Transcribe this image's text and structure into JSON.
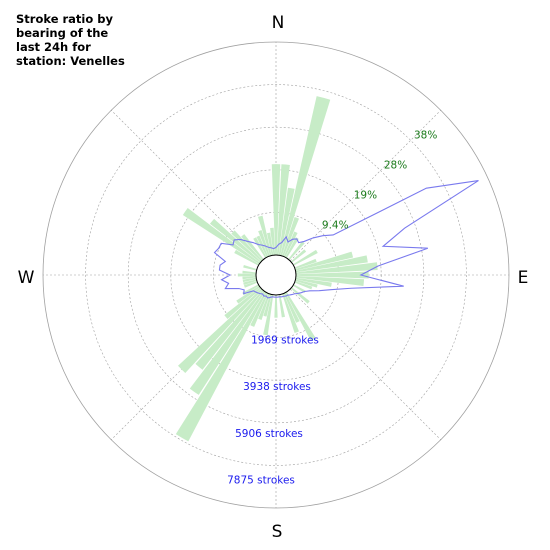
{
  "title": "Stroke ratio by bearing of the last 24h for station: Venelles",
  "colors": {
    "bars": "#c7ecc7",
    "line": "#7a7aee",
    "grid": "#a0a0a0",
    "pct_text": "#1a7a1a",
    "stroke_text": "#1a1aee"
  },
  "chart_data": {
    "type": "polar",
    "title": "Stroke ratio by bearing of the last 24h for station: Venelles",
    "directions": [
      "N",
      "E",
      "S",
      "W"
    ],
    "ratio_ticks": [
      "9.4%",
      "19%",
      "28%",
      "38%"
    ],
    "ratio_max_pct": 46.9,
    "stroke_ticks": [
      "1969 strokes",
      "3938 strokes",
      "5906 strokes",
      "7875 strokes"
    ],
    "stroke_max": 9844,
    "bin_width_deg": 5,
    "ratio_bars": [
      {
        "bearing": 0,
        "pct": 20
      },
      {
        "bearing": 5,
        "pct": 20
      },
      {
        "bearing": 10,
        "pct": 15
      },
      {
        "bearing": 15,
        "pct": 36
      },
      {
        "bearing": 20,
        "pct": 9
      },
      {
        "bearing": 25,
        "pct": 6
      },
      {
        "bearing": 30,
        "pct": 5
      },
      {
        "bearing": 40,
        "pct": 5
      },
      {
        "bearing": 50,
        "pct": 4
      },
      {
        "bearing": 60,
        "pct": 6
      },
      {
        "bearing": 70,
        "pct": 5
      },
      {
        "bearing": 75,
        "pct": 13
      },
      {
        "bearing": 80,
        "pct": 16
      },
      {
        "bearing": 85,
        "pct": 18
      },
      {
        "bearing": 90,
        "pct": 16
      },
      {
        "bearing": 95,
        "pct": 15
      },
      {
        "bearing": 100,
        "pct": 8
      },
      {
        "bearing": 105,
        "pct": 5
      },
      {
        "bearing": 110,
        "pct": 4
      },
      {
        "bearing": 120,
        "pct": 3
      },
      {
        "bearing": 130,
        "pct": 5
      },
      {
        "bearing": 150,
        "pct": 12
      },
      {
        "bearing": 155,
        "pct": 7
      },
      {
        "bearing": 160,
        "pct": 9
      },
      {
        "bearing": 170,
        "pct": 5
      },
      {
        "bearing": 180,
        "pct": 5
      },
      {
        "bearing": 190,
        "pct": 9
      },
      {
        "bearing": 195,
        "pct": 5
      },
      {
        "bearing": 200,
        "pct": 6
      },
      {
        "bearing": 205,
        "pct": 8
      },
      {
        "bearing": 210,
        "pct": 37
      },
      {
        "bearing": 215,
        "pct": 27
      },
      {
        "bearing": 220,
        "pct": 22
      },
      {
        "bearing": 225,
        "pct": 25
      },
      {
        "bearing": 230,
        "pct": 10
      },
      {
        "bearing": 235,
        "pct": 6
      },
      {
        "bearing": 240,
        "pct": 4
      },
      {
        "bearing": 250,
        "pct": 3
      },
      {
        "bearing": 255,
        "pct": 3
      },
      {
        "bearing": 260,
        "pct": 3
      },
      {
        "bearing": 265,
        "pct": 3
      },
      {
        "bearing": 270,
        "pct": 4
      },
      {
        "bearing": 275,
        "pct": 3
      },
      {
        "bearing": 285,
        "pct": 3
      },
      {
        "bearing": 300,
        "pct": 6
      },
      {
        "bearing": 305,
        "pct": 20
      },
      {
        "bearing": 310,
        "pct": 14
      },
      {
        "bearing": 315,
        "pct": 9
      },
      {
        "bearing": 320,
        "pct": 7
      },
      {
        "bearing": 330,
        "pct": 5
      },
      {
        "bearing": 335,
        "pct": 5
      },
      {
        "bearing": 340,
        "pct": 6
      },
      {
        "bearing": 345,
        "pct": 9
      },
      {
        "bearing": 350,
        "pct": 5
      },
      {
        "bearing": 355,
        "pct": 6
      }
    ],
    "stroke_line": [
      {
        "bearing": 0,
        "strokes": 350
      },
      {
        "bearing": 5,
        "strokes": 500
      },
      {
        "bearing": 10,
        "strokes": 600
      },
      {
        "bearing": 15,
        "strokes": 900
      },
      {
        "bearing": 20,
        "strokes": 700
      },
      {
        "bearing": 25,
        "strokes": 900
      },
      {
        "bearing": 30,
        "strokes": 1000
      },
      {
        "bearing": 35,
        "strokes": 900
      },
      {
        "bearing": 40,
        "strokes": 1100
      },
      {
        "bearing": 45,
        "strokes": 1500
      },
      {
        "bearing": 50,
        "strokes": 1900
      },
      {
        "bearing": 55,
        "strokes": 2300
      },
      {
        "bearing": 60,
        "strokes": 7100
      },
      {
        "bearing": 65,
        "strokes": 9400
      },
      {
        "bearing": 70,
        "strokes": 5400
      },
      {
        "bearing": 75,
        "strokes": 4200
      },
      {
        "bearing": 80,
        "strokes": 6200
      },
      {
        "bearing": 85,
        "strokes": 3800
      },
      {
        "bearing": 90,
        "strokes": 3000
      },
      {
        "bearing": 95,
        "strokes": 5000
      },
      {
        "bearing": 100,
        "strokes": 2600
      },
      {
        "bearing": 105,
        "strokes": 1700
      },
      {
        "bearing": 110,
        "strokes": 1200
      },
      {
        "bearing": 115,
        "strokes": 800
      },
      {
        "bearing": 120,
        "strokes": 600
      },
      {
        "bearing": 125,
        "strokes": 500
      },
      {
        "bearing": 130,
        "strokes": 400
      },
      {
        "bearing": 135,
        "strokes": 300
      },
      {
        "bearing": 140,
        "strokes": 250
      },
      {
        "bearing": 145,
        "strokes": 200
      },
      {
        "bearing": 150,
        "strokes": 150
      },
      {
        "bearing": 155,
        "strokes": 150
      },
      {
        "bearing": 160,
        "strokes": 120
      },
      {
        "bearing": 165,
        "strokes": 120
      },
      {
        "bearing": 170,
        "strokes": 100
      },
      {
        "bearing": 175,
        "strokes": 100
      },
      {
        "bearing": 180,
        "strokes": 100
      },
      {
        "bearing": 185,
        "strokes": 100
      },
      {
        "bearing": 190,
        "strokes": 100
      },
      {
        "bearing": 195,
        "strokes": 150
      },
      {
        "bearing": 200,
        "strokes": 200
      },
      {
        "bearing": 205,
        "strokes": 150
      },
      {
        "bearing": 210,
        "strokes": 200
      },
      {
        "bearing": 215,
        "strokes": 150
      },
      {
        "bearing": 220,
        "strokes": 200
      },
      {
        "bearing": 225,
        "strokes": 250
      },
      {
        "bearing": 230,
        "strokes": 300
      },
      {
        "bearing": 235,
        "strokes": 350
      },
      {
        "bearing": 240,
        "strokes": 800
      },
      {
        "bearing": 245,
        "strokes": 700
      },
      {
        "bearing": 250,
        "strokes": 900
      },
      {
        "bearing": 255,
        "strokes": 1500
      },
      {
        "bearing": 260,
        "strokes": 1300
      },
      {
        "bearing": 265,
        "strokes": 1600
      },
      {
        "bearing": 270,
        "strokes": 1200
      },
      {
        "bearing": 275,
        "strokes": 1700
      },
      {
        "bearing": 280,
        "strokes": 1700
      },
      {
        "bearing": 285,
        "strokes": 1500
      },
      {
        "bearing": 290,
        "strokes": 2100
      },
      {
        "bearing": 295,
        "strokes": 2000
      },
      {
        "bearing": 300,
        "strokes": 2000
      },
      {
        "bearing": 305,
        "strokes": 1500
      },
      {
        "bearing": 310,
        "strokes": 1600
      },
      {
        "bearing": 315,
        "strokes": 1400
      },
      {
        "bearing": 320,
        "strokes": 1100
      },
      {
        "bearing": 325,
        "strokes": 900
      },
      {
        "bearing": 330,
        "strokes": 700
      },
      {
        "bearing": 335,
        "strokes": 600
      },
      {
        "bearing": 340,
        "strokes": 500
      },
      {
        "bearing": 345,
        "strokes": 400
      },
      {
        "bearing": 350,
        "strokes": 350
      },
      {
        "bearing": 355,
        "strokes": 300
      }
    ]
  }
}
